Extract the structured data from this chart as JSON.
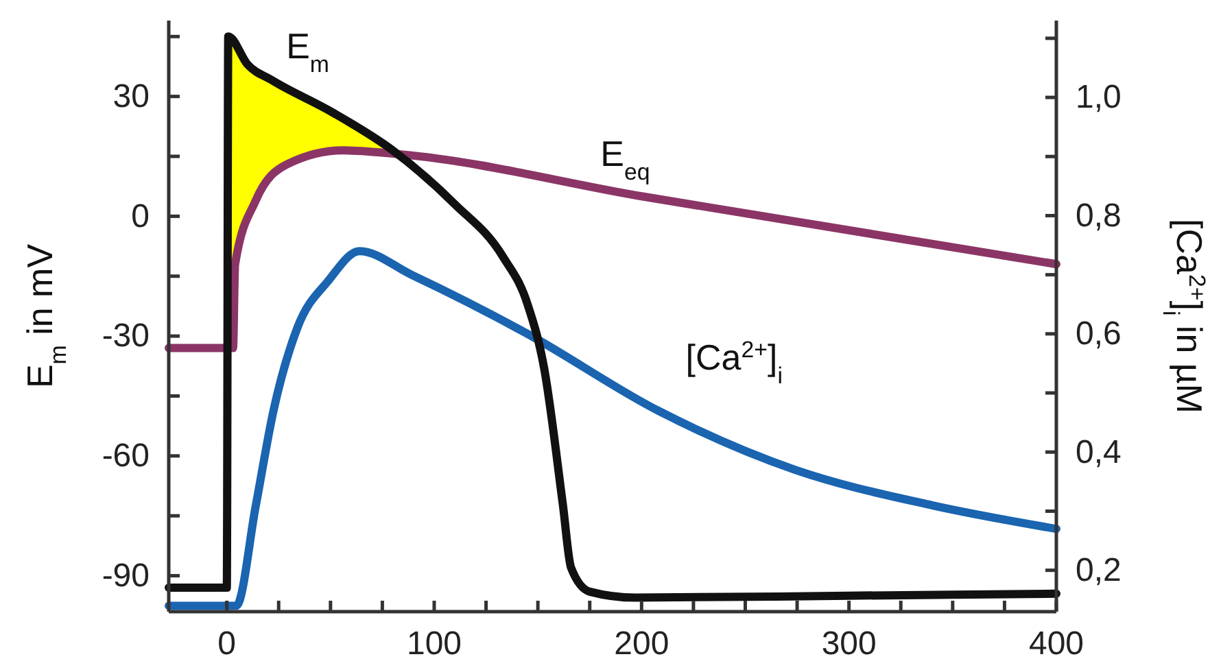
{
  "chart_data": {
    "type": "line",
    "ylabel": "E$_{m}$ in mV",
    "y2label": "[Ca$^{2+}$]$_{i}$ in µM",
    "xlim": [
      -28,
      400
    ],
    "xticks": [
      0,
      {
        "value": 25,
        "label": null
      },
      {
        "value": 50,
        "label": null
      },
      {
        "value": 75,
        "label": null
      },
      100,
      {
        "value": 125,
        "label": null
      },
      {
        "value": 150,
        "label": null
      },
      {
        "value": 175,
        "label": null
      },
      200,
      {
        "value": 225,
        "label": null
      },
      {
        "value": 250,
        "label": null
      },
      {
        "value": 275,
        "label": null
      },
      300,
      {
        "value": 325,
        "label": null
      },
      {
        "value": 350,
        "label": null
      },
      {
        "value": 375,
        "label": null
      },
      400
    ],
    "ylim": [
      -99,
      49
    ],
    "yticks": [
      -90,
      {
        "value": -75,
        "label": null
      },
      -60,
      {
        "value": -45,
        "label": null
      },
      -30,
      {
        "value": -15,
        "label": null
      },
      0,
      {
        "value": 15,
        "label": null
      },
      30,
      {
        "value": 45,
        "label": null
      }
    ],
    "y2lim": [
      0.13,
      1.13
    ],
    "y2ticks": [
      {
        "value": 0.2,
        "label": "0,2"
      },
      {
        "value": 0.3,
        "label": null
      },
      {
        "value": 0.4,
        "label": "0,4"
      },
      {
        "value": 0.5,
        "label": null
      },
      {
        "value": 0.6,
        "label": "0,6"
      },
      {
        "value": 0.7,
        "label": null
      },
      {
        "value": 0.8,
        "label": "0,8"
      },
      {
        "value": 0.9,
        "label": null
      },
      {
        "value": 1.0,
        "label": "1,0"
      },
      {
        "value": 1.1,
        "label": null
      }
    ],
    "grid": false,
    "marker": "none",
    "line_style": "solid",
    "series": [
      {
        "name": "E$_{eq}$",
        "color": "#8b3566",
        "x": [
          -28,
          3,
          4,
          14,
          29,
          56,
          84,
          200,
          400
        ],
        "values": [
          -33,
          -33,
          -12,
          4,
          13,
          16.5,
          15.5,
          5,
          -12
        ]
      },
      {
        "name": "[Ca$^{2+}$]$_{i}$",
        "color": "#1a64b0",
        "axis": "y2",
        "x": [
          -28,
          4.6,
          14,
          22.5,
          34,
          49,
          64,
          89,
          145,
          208,
          274,
          340,
          400
        ],
        "values": [
          0.14,
          0.14,
          0.31,
          0.47,
          0.61,
          0.69,
          0.74,
          0.7,
          0.6,
          0.47,
          0.37,
          0.31,
          0.27
        ]
      },
      {
        "name": "E$_{m}$",
        "color": "#111111",
        "x": [
          -28,
          0,
          0.7,
          10,
          22,
          51,
          80,
          110,
          133,
          145,
          153,
          162,
          166,
          175,
          197,
          300,
          400
        ],
        "values": [
          -93,
          -93,
          45,
          38,
          34,
          26,
          16.5,
          3,
          -10,
          -22,
          -38,
          -72,
          -88,
          -94,
          -95.5,
          -95,
          -94.5
        ],
        "lower": [
          null,
          null,
          -20,
          0,
          10,
          16,
          16.5,
          null,
          null,
          null,
          null,
          null,
          null,
          null,
          null,
          null,
          null
        ],
        "upper": [
          null,
          null,
          45,
          38,
          34,
          26,
          16.5,
          null,
          null,
          null,
          null,
          null,
          null,
          null,
          null,
          null,
          null
        ]
      }
    ]
  }
}
